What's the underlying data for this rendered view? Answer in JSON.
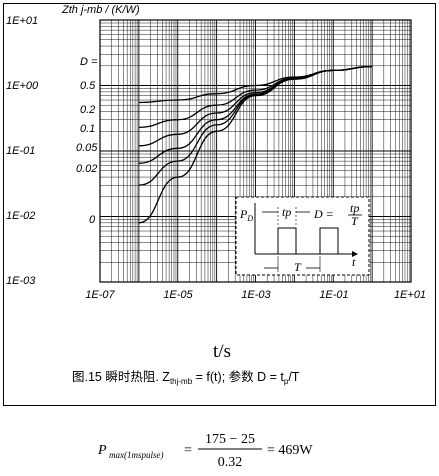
{
  "chart_data": {
    "type": "line",
    "ylabel": "Zth j-mb / (K/W)",
    "xlabel": "t/s",
    "x_scale": "log",
    "y_scale": "log",
    "xlim": [
      "1E-07",
      "1E+01"
    ],
    "ylim": [
      "1E-03",
      "1E+01"
    ],
    "x_ticks": [
      "1E-07",
      "1E-05",
      "1E-03",
      "1E-01",
      "1E+01"
    ],
    "y_ticks": [
      "1E+01",
      "1E+00",
      "1E-01",
      "1E-02",
      "1E-03"
    ],
    "grid": true,
    "legend_title": "D =",
    "series": [
      {
        "name": "0.5",
        "x": [
          1e-06,
          1e-05,
          0.0001,
          0.001,
          0.01,
          0.1,
          1
        ],
        "y": [
          0.55,
          0.6,
          0.75,
          1.0,
          1.35,
          1.7,
          1.95
        ]
      },
      {
        "name": "0.2",
        "x": [
          1e-06,
          1e-05,
          0.0001,
          0.001,
          0.01,
          0.1,
          1
        ],
        "y": [
          0.23,
          0.3,
          0.5,
          0.85,
          1.3,
          1.7,
          1.95
        ]
      },
      {
        "name": "0.1",
        "x": [
          1e-06,
          1e-05,
          0.0001,
          0.001,
          0.01,
          0.1,
          1
        ],
        "y": [
          0.12,
          0.18,
          0.38,
          0.78,
          1.28,
          1.7,
          1.95
        ]
      },
      {
        "name": "0.05",
        "x": [
          1e-06,
          1e-05,
          0.0001,
          0.001,
          0.01,
          0.1,
          1
        ],
        "y": [
          0.065,
          0.11,
          0.3,
          0.74,
          1.27,
          1.7,
          1.95
        ]
      },
      {
        "name": "0.02",
        "x": [
          1e-06,
          1e-05,
          0.0001,
          0.001,
          0.01,
          0.1,
          1
        ],
        "y": [
          0.03,
          0.07,
          0.25,
          0.72,
          1.26,
          1.7,
          1.95
        ]
      },
      {
        "name": "0",
        "x": [
          1e-06,
          1e-05,
          0.0001,
          0.001,
          0.01,
          0.1,
          1
        ],
        "y": [
          0.008,
          0.04,
          0.2,
          0.7,
          1.25,
          1.7,
          1.95
        ]
      }
    ]
  },
  "caption": {
    "prefix": "图.15 瞬时热阻. Z",
    "sub": "thj-mb",
    "middle": " = f(t);   参数 D = t",
    "sub2": "p",
    "suffix": "/T"
  },
  "inset": {
    "p_label": "P",
    "p_sub": "D",
    "tp_label": "tp",
    "d_label": "D =",
    "frac_num": "tp",
    "frac_den": "T",
    "T_label": "T",
    "t_label": "t"
  },
  "formula": {
    "P": "P",
    "sub": "max(1mspulse)",
    "eq1": "=",
    "numerator": "175 − 25",
    "denominator": "0.32",
    "eq2": "= 469W"
  }
}
